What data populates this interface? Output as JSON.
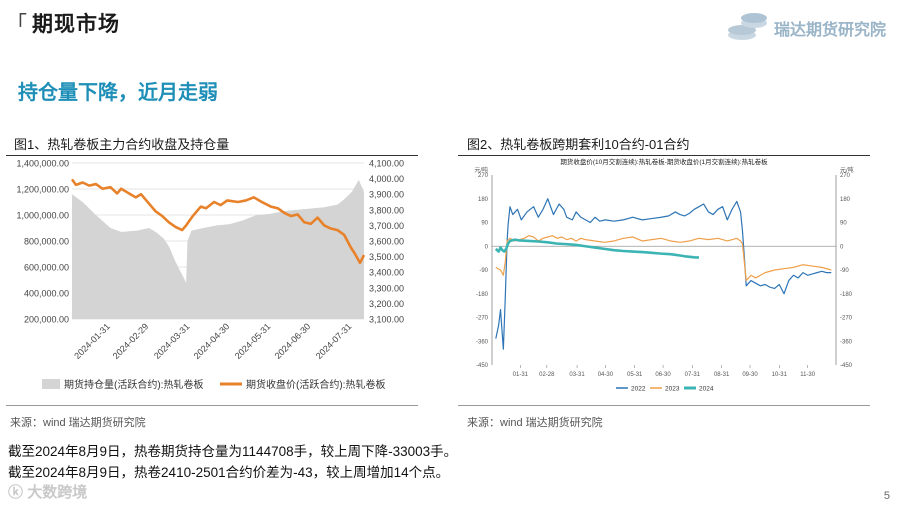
{
  "header": {
    "bracket": "「",
    "title": "期现市场",
    "logo_text": "瑞达期货研究院"
  },
  "headline": "持仓量下降，近月走弱",
  "figure1": {
    "caption": "图1、热轧卷板主力合约收盘及持仓量",
    "source": "来源：wind  瑞达期货研究院"
  },
  "figure2": {
    "caption": "图2、热轧卷板跨期套利10合约-01合约",
    "source": "来源：wind  瑞达期货研究院"
  },
  "notes": [
    "截至2024年8月9日，热卷期货持仓量为1144708手，较上周下降-33003手。",
    "截至2024年8月9日，热卷2410-2501合约价差为-43，较上周增加14个点。"
  ],
  "watermark": "大数跨境",
  "page_number": "5",
  "colors": {
    "accent": "#1f8fb8",
    "open_interest": "#d4d4d4",
    "close_price": "#e8822a",
    "y2022": "#2e75b6",
    "y2023": "#f0a04b",
    "y2024": "#3cb4b4"
  },
  "chart_data": [
    {
      "type": "area",
      "title": "",
      "x_ticks": [
        "2024-01-31",
        "2024-02-29",
        "2024-03-31",
        "2024-04-30",
        "2024-05-31",
        "2024-06-30",
        "2024-07-31"
      ],
      "y_left_ticks": [
        "200,000.00",
        "400,000.00",
        "600,000.00",
        "800,000.00",
        "1,000,000.00",
        "1,200,000.00",
        "1,400,000.00"
      ],
      "y_right_ticks": [
        "3,100.00",
        "3,200.00",
        "3,300.00",
        "3,400.00",
        "3,500.00",
        "3,600.00",
        "3,700.00",
        "3,800.00",
        "3,900.00",
        "4,000.00",
        "4,100.00"
      ],
      "ylim_left": [
        200000,
        1400000
      ],
      "ylim_right": [
        3100,
        4100
      ],
      "xlim": [
        "2024-01-02",
        "2024-08-09"
      ],
      "grid": true,
      "legend_position": "bottom",
      "series": [
        {
          "name": "期货持仓量(活跃合约):热轧卷板",
          "axis": "left",
          "kind": "area",
          "x": [
            "2024-01-02",
            "2024-01-10",
            "2024-01-20",
            "2024-01-31",
            "2024-02-08",
            "2024-02-20",
            "2024-02-29",
            "2024-03-05",
            "2024-03-11",
            "2024-03-15",
            "2024-03-20",
            "2024-03-25",
            "2024-03-28",
            "2024-03-29",
            "2024-04-01",
            "2024-04-10",
            "2024-04-20",
            "2024-04-30",
            "2024-05-10",
            "2024-05-20",
            "2024-05-31",
            "2024-06-10",
            "2024-06-20",
            "2024-06-30",
            "2024-07-10",
            "2024-07-20",
            "2024-07-25",
            "2024-07-31",
            "2024-08-05",
            "2024-08-09"
          ],
          "values": [
            1160000,
            1100000,
            1000000,
            900000,
            870000,
            880000,
            900000,
            870000,
            820000,
            760000,
            640000,
            540000,
            480000,
            800000,
            880000,
            900000,
            920000,
            930000,
            960000,
            1000000,
            1010000,
            1030000,
            1040000,
            1050000,
            1060000,
            1080000,
            1120000,
            1180000,
            1270000,
            1180000
          ]
        },
        {
          "name": "期货收盘价(活跃合约):热轧卷板",
          "axis": "right",
          "kind": "line",
          "x": [
            "2024-01-02",
            "2024-01-05",
            "2024-01-10",
            "2024-01-15",
            "2024-01-20",
            "2024-01-25",
            "2024-01-31",
            "2024-02-05",
            "2024-02-08",
            "2024-02-19",
            "2024-02-23",
            "2024-02-29",
            "2024-03-05",
            "2024-03-10",
            "2024-03-15",
            "2024-03-20",
            "2024-03-25",
            "2024-03-28",
            "2024-04-02",
            "2024-04-08",
            "2024-04-12",
            "2024-04-18",
            "2024-04-23",
            "2024-04-28",
            "2024-05-06",
            "2024-05-12",
            "2024-05-18",
            "2024-05-24",
            "2024-05-31",
            "2024-06-05",
            "2024-06-10",
            "2024-06-15",
            "2024-06-20",
            "2024-06-25",
            "2024-06-30",
            "2024-07-05",
            "2024-07-10",
            "2024-07-15",
            "2024-07-20",
            "2024-07-25",
            "2024-07-30",
            "2024-08-02",
            "2024-08-06",
            "2024-08-09"
          ],
          "values": [
            3995,
            3960,
            3975,
            3955,
            3965,
            3935,
            3945,
            3905,
            3935,
            3880,
            3900,
            3840,
            3790,
            3760,
            3720,
            3690,
            3670,
            3700,
            3760,
            3820,
            3810,
            3850,
            3830,
            3860,
            3850,
            3860,
            3880,
            3850,
            3820,
            3810,
            3780,
            3760,
            3770,
            3720,
            3710,
            3750,
            3700,
            3680,
            3670,
            3640,
            3560,
            3520,
            3460,
            3510
          ]
        }
      ]
    },
    {
      "type": "line",
      "title": "期货收盘价(10月交割连续):热轧卷板-期货收盘价(1月交割连续):热轧卷板",
      "left_unit": "元/吨",
      "right_unit": "元/吨",
      "x_ticks": [
        "01-31",
        "02-28",
        "03-31",
        "04-30",
        "05-31",
        "06-30",
        "07-31",
        "08-31",
        "09-30",
        "10-31",
        "11-30"
      ],
      "y_ticks": [
        "-450",
        "-360",
        "-270",
        "-180",
        "-90",
        "0",
        "90",
        "180",
        "270"
      ],
      "ylim": [
        -450,
        270
      ],
      "x_unit": "day_of_year",
      "xlim": [
        1,
        365
      ],
      "grid": false,
      "legend_position": "bottom",
      "series": [
        {
          "name": "2022",
          "x": [
            5,
            8,
            10,
            13,
            15,
            17,
            18,
            20,
            23,
            28,
            32,
            38,
            45,
            50,
            55,
            60,
            66,
            72,
            77,
            80,
            86,
            90,
            95,
            100,
            105,
            110,
            115,
            121,
            130,
            140,
            150,
            160,
            170,
            180,
            188,
            195,
            200,
            205,
            210,
            215,
            220,
            225,
            230,
            235,
            240,
            245,
            250,
            255,
            260,
            262,
            264,
            266,
            268,
            270,
            275,
            280,
            285,
            290,
            295,
            300,
            305,
            310,
            315,
            320,
            325,
            330,
            335,
            340,
            345,
            350,
            355,
            360
          ],
          "values": [
            -350,
            -300,
            -240,
            -390,
            -200,
            20,
            80,
            150,
            120,
            140,
            100,
            130,
            150,
            110,
            140,
            180,
            120,
            160,
            140,
            110,
            100,
            130,
            110,
            100,
            90,
            110,
            95,
            100,
            95,
            100,
            110,
            100,
            105,
            110,
            115,
            130,
            120,
            115,
            125,
            140,
            150,
            160,
            130,
            120,
            140,
            150,
            100,
            140,
            170,
            150,
            130,
            60,
            -40,
            -150,
            -130,
            -140,
            -150,
            -145,
            -155,
            -160,
            -145,
            -180,
            -130,
            -110,
            -120,
            -100,
            -110,
            -105,
            -100,
            -95,
            -100,
            -100
          ]
        },
        {
          "name": "2023",
          "x": [
            5,
            10,
            13,
            15,
            17,
            20,
            25,
            30,
            35,
            40,
            45,
            50,
            55,
            60,
            65,
            70,
            75,
            80,
            85,
            90,
            95,
            100,
            110,
            120,
            130,
            140,
            150,
            160,
            170,
            180,
            190,
            200,
            210,
            220,
            230,
            240,
            250,
            255,
            260,
            264,
            266,
            268,
            270,
            275,
            280,
            290,
            300,
            310,
            320,
            330,
            340,
            350,
            360
          ],
          "values": [
            -80,
            -90,
            -110,
            -60,
            20,
            30,
            20,
            25,
            30,
            40,
            35,
            20,
            30,
            35,
            40,
            30,
            35,
            25,
            30,
            20,
            30,
            25,
            20,
            15,
            20,
            30,
            35,
            20,
            25,
            30,
            20,
            15,
            20,
            30,
            25,
            30,
            20,
            25,
            30,
            20,
            10,
            -60,
            -130,
            -110,
            -120,
            -100,
            -90,
            -85,
            -80,
            -70,
            -75,
            -80,
            -90
          ]
        },
        {
          "name": "2024",
          "x": [
            5,
            8,
            10,
            12,
            14,
            16,
            18,
            20,
            25,
            30,
            40,
            50,
            60,
            70,
            80,
            90,
            100,
            110,
            120,
            130,
            140,
            150,
            160,
            170,
            180,
            190,
            200,
            205,
            210,
            215,
            220
          ],
          "values": [
            -10,
            -20,
            -5,
            -15,
            -20,
            -10,
            10,
            20,
            25,
            22,
            20,
            18,
            15,
            10,
            8,
            5,
            0,
            -5,
            -10,
            -15,
            -18,
            -20,
            -22,
            -25,
            -28,
            -30,
            -35,
            -38,
            -40,
            -42,
            -43
          ]
        }
      ]
    }
  ]
}
